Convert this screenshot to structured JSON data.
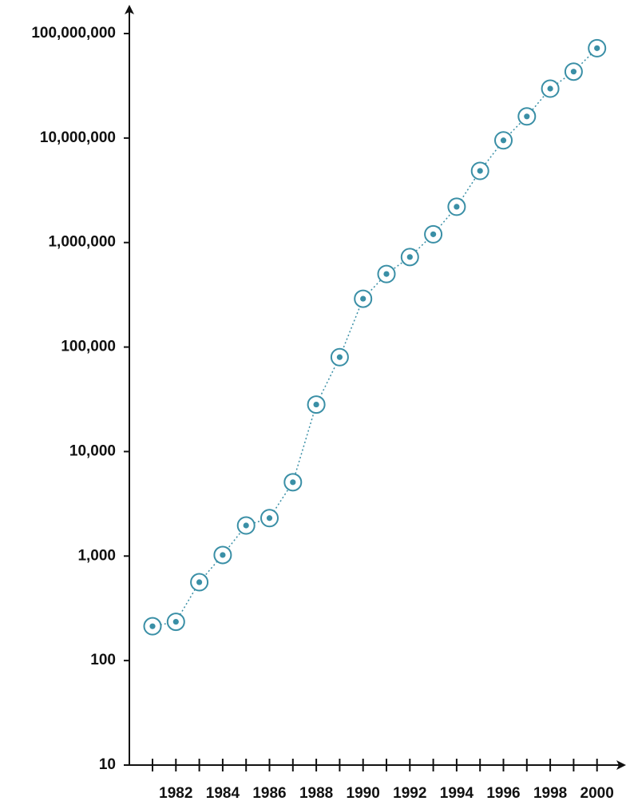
{
  "colors": {
    "axis": "#111111",
    "marker": "#3a8fa6",
    "connector": "#3a8fa6",
    "background": "#ffffff"
  },
  "chart_data": {
    "type": "scatter",
    "title": "",
    "xlabel": "",
    "ylabel": "",
    "y_scale": "log",
    "grid": false,
    "legend": "none",
    "connector_line": "dotted",
    "marker_style": "open circle with center dot",
    "xlim": [
      1980,
      2001
    ],
    "ylim": [
      10,
      100000000
    ],
    "x_ticks": [
      1981,
      1982,
      1983,
      1984,
      1985,
      1986,
      1987,
      1988,
      1989,
      1990,
      1991,
      1992,
      1993,
      1994,
      1995,
      1996,
      1997,
      1998,
      1999,
      2000
    ],
    "x_tick_labels": [
      "1982",
      "1984",
      "1986",
      "1988",
      "1990",
      "1992",
      "1994",
      "1996",
      "1998",
      "2000"
    ],
    "x_tick_label_values": [
      1982,
      1984,
      1986,
      1988,
      1990,
      1992,
      1994,
      1996,
      1998,
      2000
    ],
    "y_ticks": [
      10,
      100,
      1000,
      10000,
      100000,
      1000000,
      10000000,
      100000000
    ],
    "y_tick_labels": [
      "10",
      "100",
      "1,000",
      "10,000",
      "100,000",
      "1,000,000",
      "10,000,000",
      "100,000,000"
    ],
    "x": [
      1981,
      1982,
      1983,
      1984,
      1985,
      1986,
      1987,
      1988,
      1989,
      1990,
      1991,
      1992,
      1993,
      1994,
      1995,
      1996,
      1997,
      1998,
      1999,
      2000
    ],
    "y": [
      213,
      235,
      562,
      1024,
      1961,
      2308,
      5089,
      28174,
      80000,
      290000,
      500000,
      727000,
      1200000,
      2200000,
      4850000,
      9500000,
      16100000,
      29700000,
      43200000,
      72400000
    ]
  }
}
